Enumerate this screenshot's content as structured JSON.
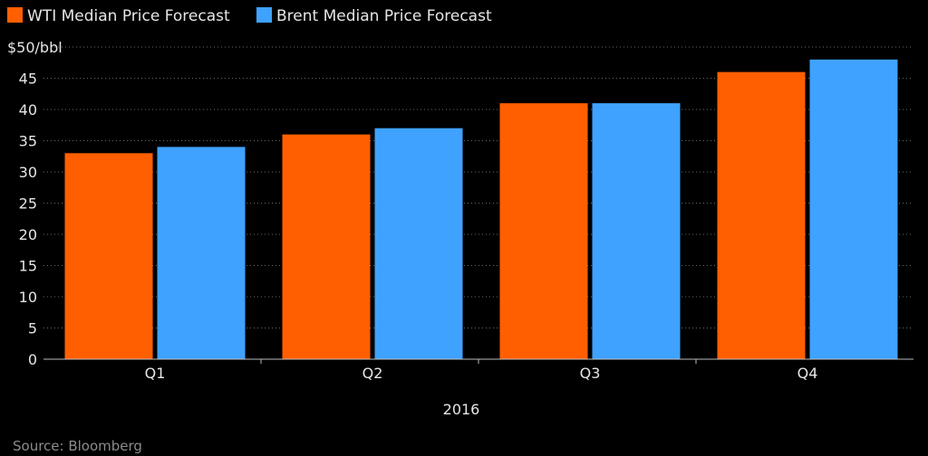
{
  "chart_data": {
    "type": "bar",
    "categories": [
      "Q1",
      "Q2",
      "Q3",
      "Q4"
    ],
    "series": [
      {
        "name": "WTI Median Price Forecast",
        "values": [
          33,
          36,
          41,
          46
        ],
        "color": "#ff5f00"
      },
      {
        "name": "Brent Median Price Forecast",
        "values": [
          34,
          37,
          41,
          48
        ],
        "color": "#3fa2ff"
      }
    ],
    "ylim": [
      0,
      50
    ],
    "yticks": [
      0,
      5,
      10,
      15,
      20,
      25,
      30,
      35,
      40,
      45
    ],
    "ytop_label": "$50/bbl",
    "xlabel": "2016",
    "grid": true,
    "legend_position": "top-left"
  },
  "source": "Source: Bloomberg",
  "colors": {
    "background": "#000000",
    "text": "#e6e6e6",
    "grid": "#6a6a6a",
    "axis": "#bdbdbd",
    "source_text": "#8c8c8c"
  }
}
